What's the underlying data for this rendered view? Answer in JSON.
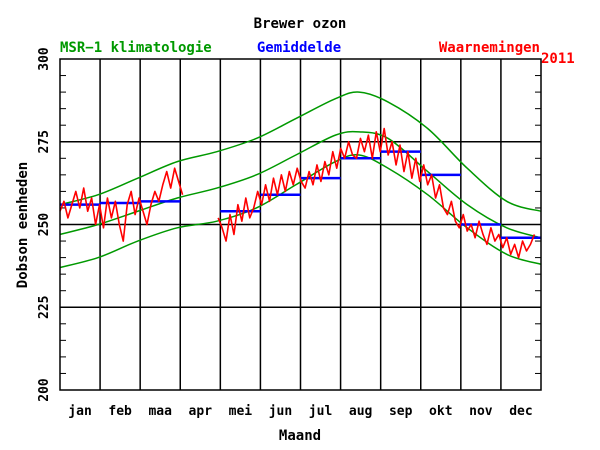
{
  "chart_data": {
    "type": "line",
    "title": "Brewer ozon",
    "legend": [
      {
        "label": "MSR−1 klimatologie",
        "color": "#009900"
      },
      {
        "label": "Gemiddelde",
        "color": "#0000ff"
      },
      {
        "label": "Waarnemingen",
        "color": "#ff0000"
      }
    ],
    "year_label": "2011",
    "xlabel": "Maand",
    "ylabel": "Dobson eenheden",
    "ylim": [
      200,
      300
    ],
    "yticks": [
      200,
      225,
      250,
      275,
      300
    ],
    "ytick_labels": [
      "200",
      "225",
      "250",
      "275",
      "300"
    ],
    "months": [
      "jan",
      "feb",
      "maa",
      "apr",
      "mei",
      "jun",
      "jul",
      "aug",
      "sep",
      "okt",
      "nov",
      "dec"
    ],
    "climatology": {
      "x_day": [
        1,
        30,
        60,
        90,
        120,
        150,
        180,
        210,
        228,
        250,
        280,
        310,
        340,
        366
      ],
      "upper": [
        256,
        259,
        264,
        269,
        272,
        276,
        282,
        288,
        290,
        287,
        279,
        267,
        257,
        254
      ],
      "mean": [
        247,
        250,
        254,
        258,
        261,
        265,
        271,
        277,
        278,
        276,
        266,
        256,
        249,
        246
      ],
      "lower": [
        237,
        240,
        245,
        249,
        251,
        255,
        262,
        269,
        271,
        267,
        259,
        249,
        241,
        238
      ]
    },
    "monthly_mean": [
      {
        "month": "jan",
        "value": 256
      },
      {
        "month": "feb",
        "value": 256.5
      },
      {
        "month": "maa",
        "value": 257
      },
      {
        "month": "mei",
        "value": 254
      },
      {
        "month": "jun",
        "value": 259
      },
      {
        "month": "jul",
        "value": 264
      },
      {
        "month": "aug",
        "value": 270
      },
      {
        "month": "sep",
        "value": 272
      },
      {
        "month": "okt",
        "value": 265
      },
      {
        "month": "nov",
        "value": 250
      },
      {
        "month": "dec",
        "value": 246
      }
    ],
    "observations": [
      {
        "day": 1,
        "value": 254
      },
      {
        "day": 4,
        "value": 257
      },
      {
        "day": 7,
        "value": 252
      },
      {
        "day": 10,
        "value": 256
      },
      {
        "day": 13,
        "value": 260
      },
      {
        "day": 16,
        "value": 255
      },
      {
        "day": 19,
        "value": 261
      },
      {
        "day": 22,
        "value": 254
      },
      {
        "day": 25,
        "value": 258
      },
      {
        "day": 28,
        "value": 250
      },
      {
        "day": 31,
        "value": 256
      },
      {
        "day": 34,
        "value": 249
      },
      {
        "day": 37,
        "value": 258
      },
      {
        "day": 40,
        "value": 252
      },
      {
        "day": 43,
        "value": 257
      },
      {
        "day": 46,
        "value": 250
      },
      {
        "day": 49,
        "value": 245
      },
      {
        "day": 52,
        "value": 256
      },
      {
        "day": 55,
        "value": 260
      },
      {
        "day": 58,
        "value": 253
      },
      {
        "day": 61,
        "value": 258
      },
      {
        "day": 64,
        "value": 254
      },
      {
        "day": 67,
        "value": 250
      },
      {
        "day": 70,
        "value": 256
      },
      {
        "day": 73,
        "value": 260
      },
      {
        "day": 76,
        "value": 257
      },
      {
        "day": 79,
        "value": 262
      },
      {
        "day": 82,
        "value": 266
      },
      {
        "day": 85,
        "value": 261
      },
      {
        "day": 88,
        "value": 267
      },
      {
        "day": 91,
        "value": 263
      },
      {
        "day": 94,
        "value": 259
      },
      {
        "day": 121,
        "value": 252
      },
      {
        "day": 124,
        "value": 249
      },
      {
        "day": 127,
        "value": 245
      },
      {
        "day": 130,
        "value": 253
      },
      {
        "day": 133,
        "value": 247
      },
      {
        "day": 136,
        "value": 256
      },
      {
        "day": 139,
        "value": 251
      },
      {
        "day": 142,
        "value": 258
      },
      {
        "day": 145,
        "value": 252
      },
      {
        "day": 148,
        "value": 255
      },
      {
        "day": 151,
        "value": 260
      },
      {
        "day": 154,
        "value": 256
      },
      {
        "day": 157,
        "value": 262
      },
      {
        "day": 160,
        "value": 257
      },
      {
        "day": 163,
        "value": 264
      },
      {
        "day": 166,
        "value": 259
      },
      {
        "day": 169,
        "value": 265
      },
      {
        "day": 172,
        "value": 260
      },
      {
        "day": 175,
        "value": 266
      },
      {
        "day": 178,
        "value": 262
      },
      {
        "day": 181,
        "value": 267
      },
      {
        "day": 184,
        "value": 263
      },
      {
        "day": 187,
        "value": 261
      },
      {
        "day": 190,
        "value": 266
      },
      {
        "day": 193,
        "value": 262
      },
      {
        "day": 196,
        "value": 268
      },
      {
        "day": 199,
        "value": 263
      },
      {
        "day": 202,
        "value": 269
      },
      {
        "day": 205,
        "value": 265
      },
      {
        "day": 208,
        "value": 272
      },
      {
        "day": 211,
        "value": 267
      },
      {
        "day": 214,
        "value": 273
      },
      {
        "day": 217,
        "value": 270
      },
      {
        "day": 220,
        "value": 275
      },
      {
        "day": 223,
        "value": 271
      },
      {
        "day": 226,
        "value": 270
      },
      {
        "day": 229,
        "value": 276
      },
      {
        "day": 232,
        "value": 272
      },
      {
        "day": 235,
        "value": 277
      },
      {
        "day": 238,
        "value": 270
      },
      {
        "day": 241,
        "value": 278
      },
      {
        "day": 244,
        "value": 272
      },
      {
        "day": 247,
        "value": 279
      },
      {
        "day": 250,
        "value": 271
      },
      {
        "day": 253,
        "value": 275
      },
      {
        "day": 256,
        "value": 268
      },
      {
        "day": 259,
        "value": 274
      },
      {
        "day": 262,
        "value": 266
      },
      {
        "day": 265,
        "value": 272
      },
      {
        "day": 268,
        "value": 264
      },
      {
        "day": 271,
        "value": 270
      },
      {
        "day": 274,
        "value": 263
      },
      {
        "day": 277,
        "value": 268
      },
      {
        "day": 280,
        "value": 262
      },
      {
        "day": 283,
        "value": 265
      },
      {
        "day": 286,
        "value": 258
      },
      {
        "day": 289,
        "value": 262
      },
      {
        "day": 292,
        "value": 255
      },
      {
        "day": 295,
        "value": 253
      },
      {
        "day": 298,
        "value": 257
      },
      {
        "day": 301,
        "value": 251
      },
      {
        "day": 304,
        "value": 249
      },
      {
        "day": 307,
        "value": 253
      },
      {
        "day": 310,
        "value": 248
      },
      {
        "day": 313,
        "value": 250
      },
      {
        "day": 316,
        "value": 246
      },
      {
        "day": 319,
        "value": 251
      },
      {
        "day": 322,
        "value": 247
      },
      {
        "day": 325,
        "value": 244
      },
      {
        "day": 328,
        "value": 249
      },
      {
        "day": 331,
        "value": 245
      },
      {
        "day": 334,
        "value": 247
      },
      {
        "day": 337,
        "value": 243
      },
      {
        "day": 340,
        "value": 246
      },
      {
        "day": 343,
        "value": 241
      },
      {
        "day": 346,
        "value": 244
      },
      {
        "day": 349,
        "value": 240
      },
      {
        "day": 352,
        "value": 245
      },
      {
        "day": 355,
        "value": 242
      },
      {
        "day": 358,
        "value": 244
      },
      {
        "day": 361,
        "value": 247
      }
    ]
  }
}
